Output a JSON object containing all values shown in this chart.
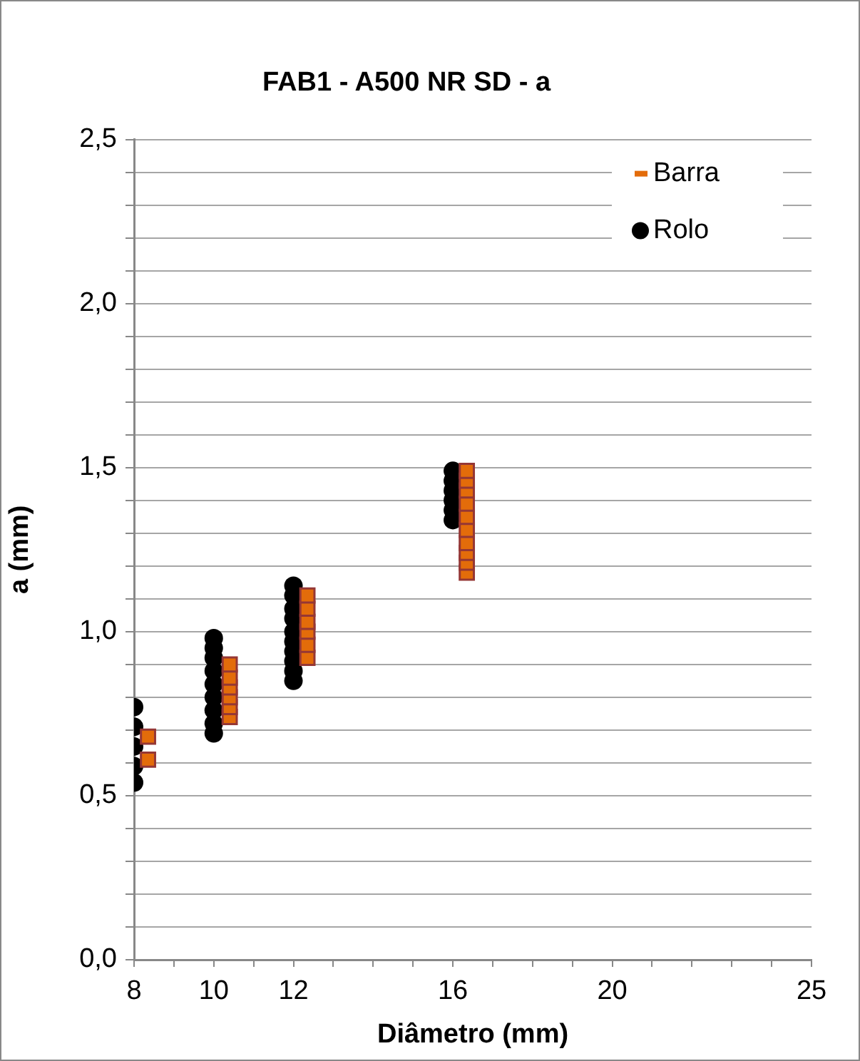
{
  "chart_data": {
    "type": "scatter",
    "title": "FAB1 - A500 NR SD - a",
    "xlabel": "Diâmetro (mm)",
    "ylabel": "a (mm)",
    "series": [
      {
        "name": "Barra",
        "color": "#e36c0a",
        "marker": "square",
        "x": [
          8.35,
          8.35,
          10.4,
          10.4,
          10.4,
          10.4,
          10.4,
          10.4,
          12.35,
          12.35,
          12.35,
          12.35,
          12.35,
          12.35,
          16.35,
          16.35,
          16.35,
          16.35,
          16.35,
          16.35,
          16.35,
          16.35,
          16.35,
          16.35
        ],
        "values": [
          0.61,
          0.68,
          0.74,
          0.77,
          0.8,
          0.83,
          0.86,
          0.9,
          0.92,
          0.96,
          1.0,
          1.03,
          1.07,
          1.11,
          1.18,
          1.21,
          1.24,
          1.27,
          1.31,
          1.35,
          1.39,
          1.43,
          1.46,
          1.49
        ]
      },
      {
        "name": "Rolo",
        "color": "#000000",
        "marker": "circle",
        "x": [
          8,
          8,
          8,
          8,
          8,
          10,
          10,
          10,
          10,
          10,
          10,
          10,
          10,
          10,
          12,
          12,
          12,
          12,
          12,
          12,
          12,
          12,
          12,
          12,
          16,
          16,
          16,
          16,
          16,
          16
        ],
        "values": [
          0.54,
          0.59,
          0.65,
          0.71,
          0.77,
          0.69,
          0.72,
          0.76,
          0.8,
          0.84,
          0.88,
          0.92,
          0.95,
          0.98,
          0.85,
          0.88,
          0.91,
          0.94,
          0.97,
          1.0,
          1.04,
          1.07,
          1.11,
          1.14,
          1.34,
          1.37,
          1.4,
          1.43,
          1.46,
          1.49
        ]
      }
    ],
    "xlim": [
      8,
      25
    ],
    "xticks": [
      8,
      {
        "value": 9,
        "label": null
      },
      10,
      {
        "value": 11,
        "label": null
      },
      12,
      {
        "value": 13,
        "label": null
      },
      {
        "value": 14,
        "label": null
      },
      {
        "value": 15,
        "label": null
      },
      16,
      {
        "value": 17,
        "label": null
      },
      {
        "value": 18,
        "label": null
      },
      {
        "value": 19,
        "label": null
      },
      20,
      {
        "value": 21,
        "label": null
      },
      {
        "value": 22,
        "label": null
      },
      {
        "value": 23,
        "label": null
      },
      {
        "value": 24,
        "label": null
      },
      25
    ],
    "ylim": [
      0,
      2.5
    ],
    "yticks": [
      {
        "value": 0,
        "label": "0,0"
      },
      {
        "value": 0.1,
        "label": null
      },
      {
        "value": 0.2,
        "label": null
      },
      {
        "value": 0.3,
        "label": null
      },
      {
        "value": 0.4,
        "label": null
      },
      {
        "value": 0.5,
        "label": "0,5"
      },
      {
        "value": 0.6,
        "label": null
      },
      {
        "value": 0.7,
        "label": null
      },
      {
        "value": 0.8,
        "label": null
      },
      {
        "value": 0.9,
        "label": null
      },
      {
        "value": 1.0,
        "label": "1,0"
      },
      {
        "value": 1.1,
        "label": null
      },
      {
        "value": 1.2,
        "label": null
      },
      {
        "value": 1.3,
        "label": null
      },
      {
        "value": 1.4,
        "label": null
      },
      {
        "value": 1.5,
        "label": "1,5"
      },
      {
        "value": 1.6,
        "label": null
      },
      {
        "value": 1.7,
        "label": null
      },
      {
        "value": 1.8,
        "label": null
      },
      {
        "value": 1.9,
        "label": null
      },
      {
        "value": 2.0,
        "label": "2,0"
      },
      {
        "value": 2.1,
        "label": null
      },
      {
        "value": 2.2,
        "label": null
      },
      {
        "value": 2.3,
        "label": null
      },
      {
        "value": 2.4,
        "label": null
      },
      {
        "value": 2.5,
        "label": "2,5"
      }
    ],
    "grid": "y",
    "legend": "top right"
  }
}
